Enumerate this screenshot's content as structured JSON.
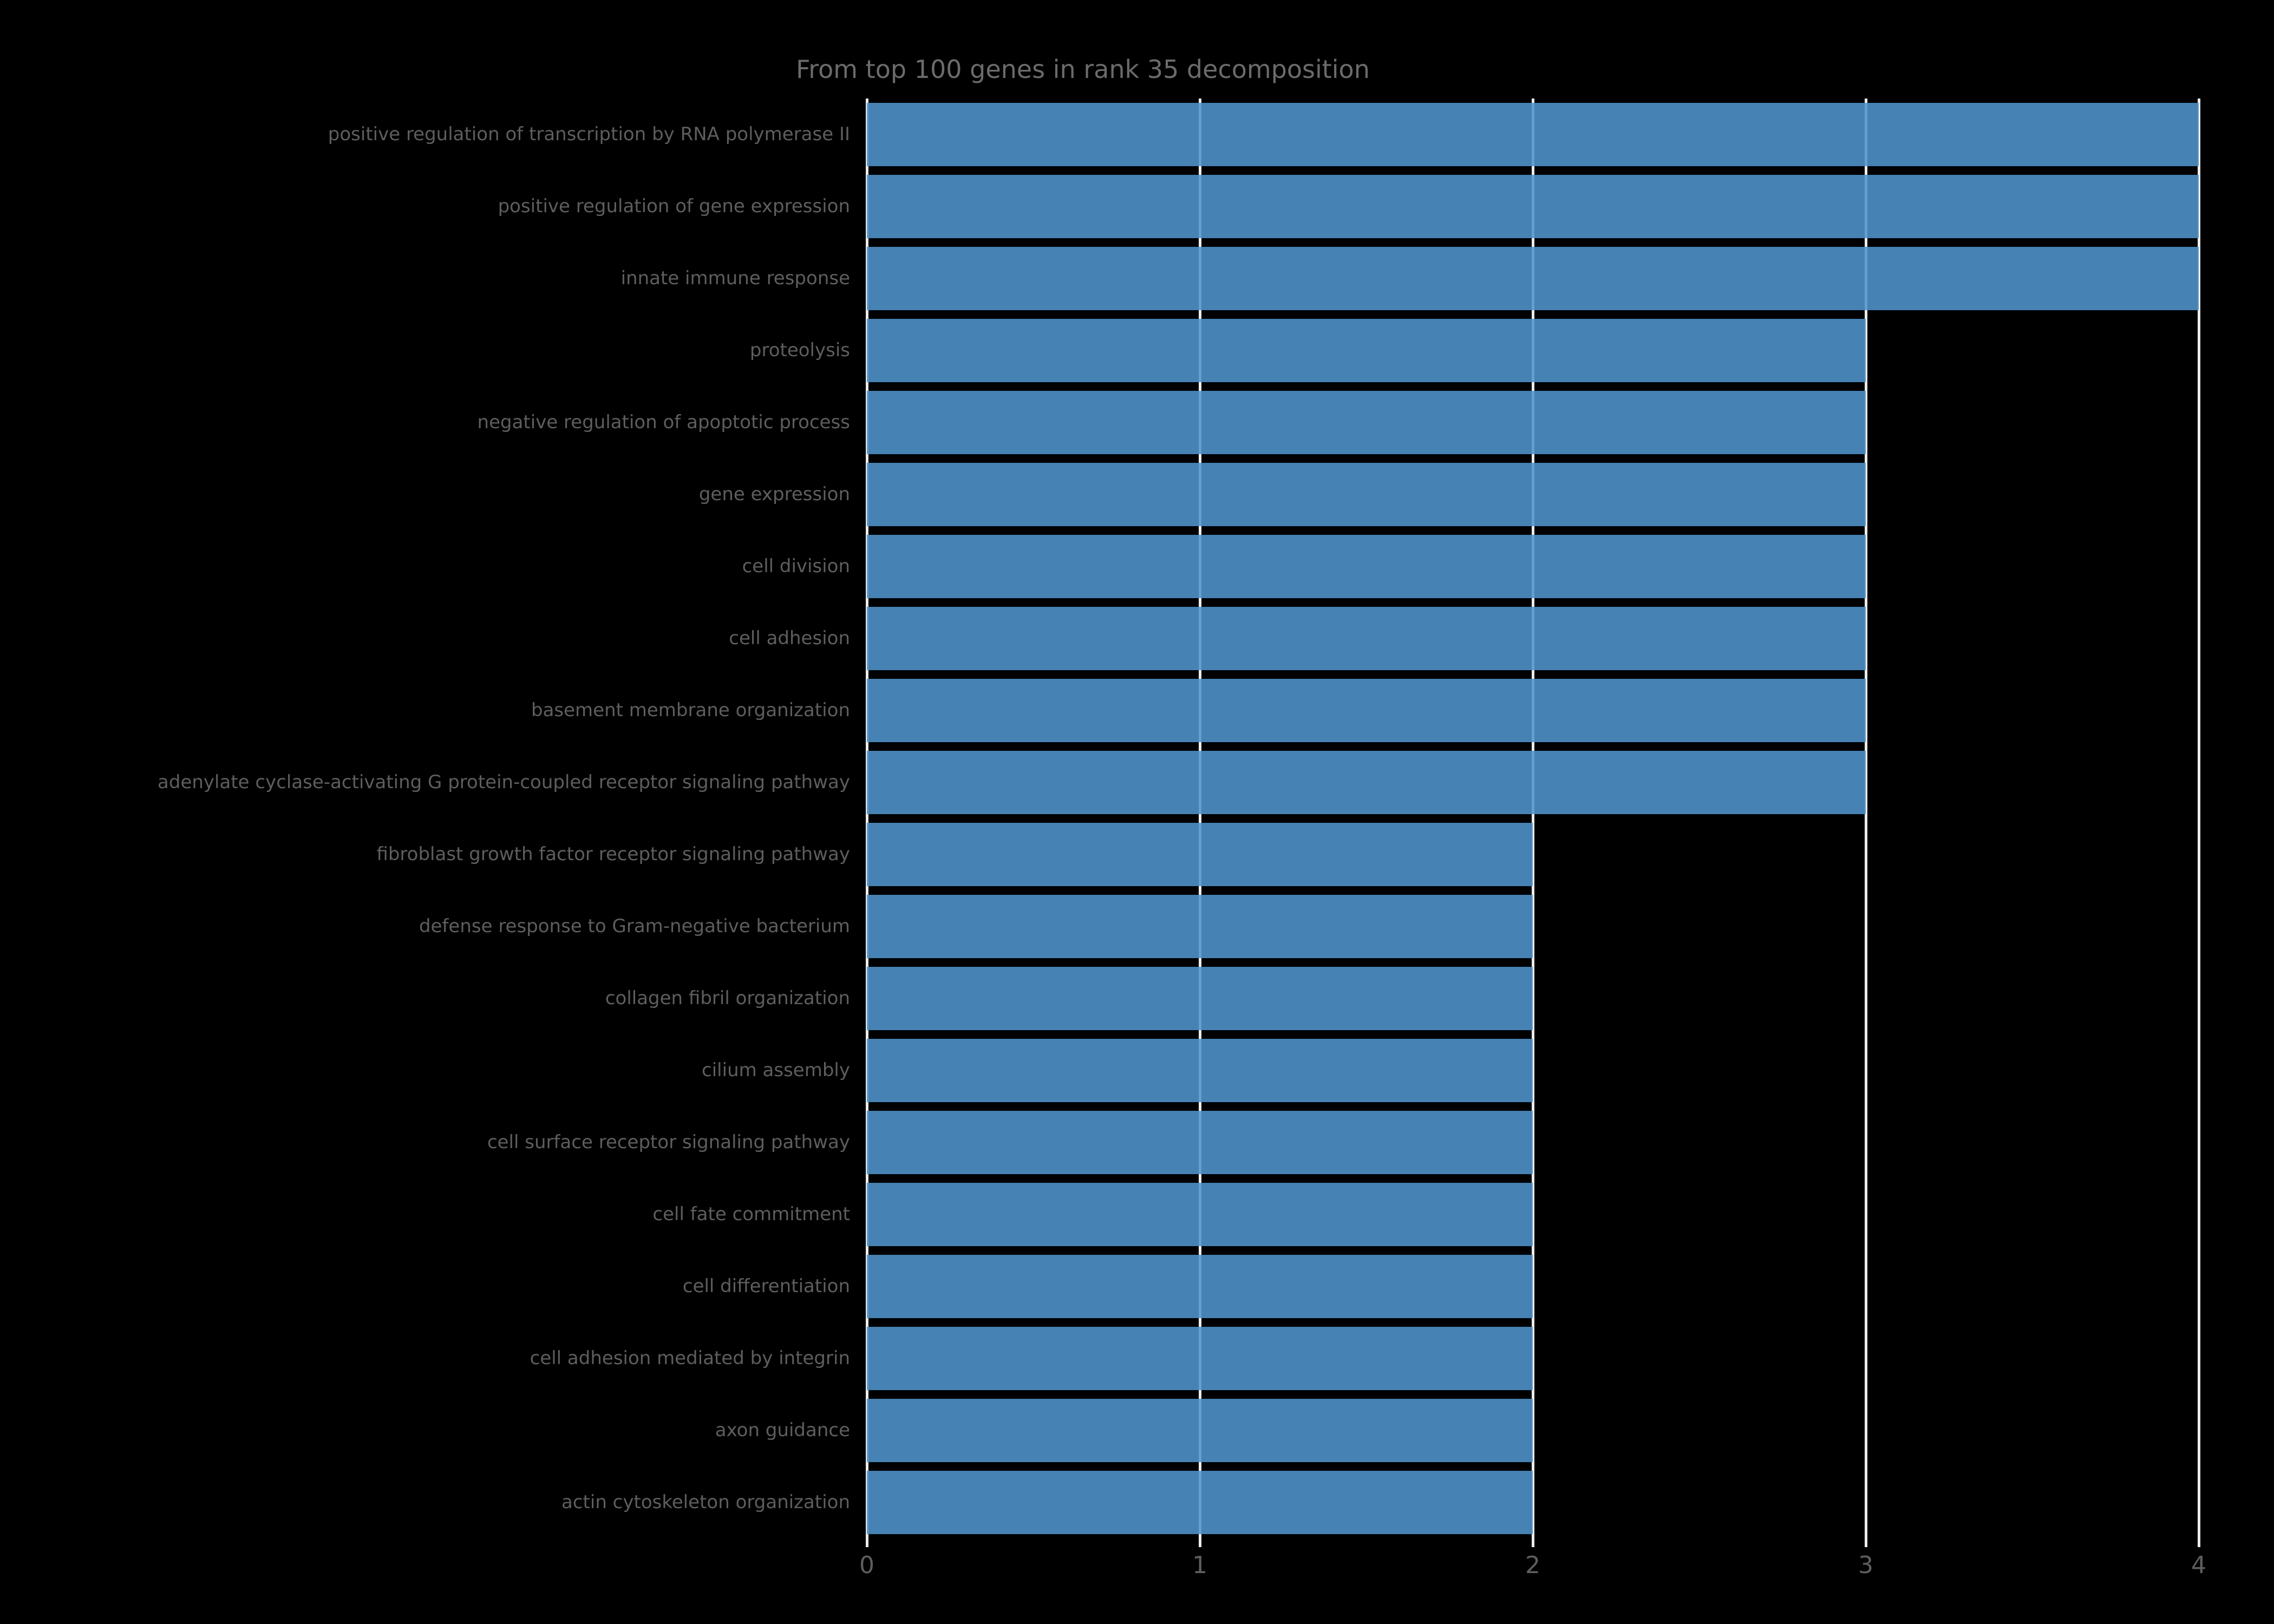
{
  "title": "From top 100 genes in rank 35 decomposition",
  "colors": {
    "background": "#000000",
    "bar": "#4682b4",
    "gridline": "#ebebeb",
    "text": "#5e5e5e",
    "title_text": "#6b6b6b"
  },
  "chart_data": {
    "type": "bar",
    "orientation": "horizontal",
    "title": "From top 100 genes in rank 35 decomposition",
    "xlabel": "",
    "ylabel": "",
    "categories": [
      "positive regulation of transcription by RNA polymerase II",
      "positive regulation of gene expression",
      "innate immune response",
      "proteolysis",
      "negative regulation of apoptotic process",
      "gene expression",
      "cell division",
      "cell adhesion",
      "basement membrane organization",
      "adenylate cyclase-activating G protein-coupled receptor signaling pathway",
      "fibroblast growth factor receptor signaling pathway",
      "defense response to Gram-negative bacterium",
      "collagen fibril organization",
      "cilium assembly",
      "cell surface receptor signaling pathway",
      "cell fate commitment",
      "cell differentiation",
      "cell adhesion mediated by integrin",
      "axon guidance",
      "actin cytoskeleton organization"
    ],
    "values": [
      4,
      4,
      4,
      3,
      3,
      3,
      3,
      3,
      3,
      3,
      2,
      2,
      2,
      2,
      2,
      2,
      2,
      2,
      2,
      2
    ],
    "x_ticks": [
      "0",
      "1",
      "2",
      "3",
      "4"
    ],
    "xlim": [
      0,
      4
    ],
    "grid": true,
    "legend": false,
    "bar_color": "#4682b4"
  }
}
